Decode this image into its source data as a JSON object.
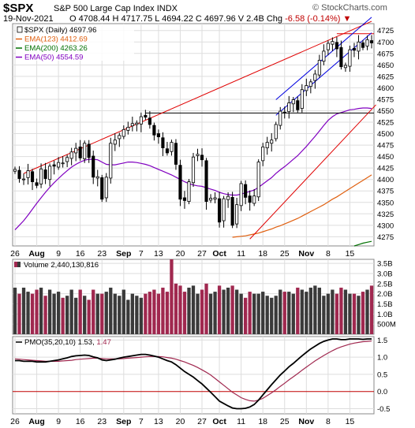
{
  "header": {
    "symbol": "$SPX",
    "name": "S&P 500 Large Cap Index",
    "exchange": "INDX",
    "source": "© StockCharts.com",
    "date": "19-Nov-2021",
    "open_label": "O",
    "open": "4708.44",
    "high_label": "H",
    "high": "4717.75",
    "low_label": "L",
    "low": "4694.22",
    "close_label": "C",
    "close": "4697.96",
    "volume_label": "V",
    "volume": "2.4B",
    "chg_label": "Chg",
    "chg": "-6.58 (-0.14%)",
    "chg_marker": "▼"
  },
  "colors": {
    "up_candle_outline": "#000000",
    "down_candle": "#000000",
    "ema123": "#e06010",
    "ema200": "#007000",
    "ema50": "#8000c0",
    "trendline": "#e00000",
    "channel": "#0000e0",
    "horizontal": "#000000",
    "vol_up": "#3a3a3a",
    "vol_down": "#a0284f",
    "pmo": "#000000",
    "pmo_signal": "#a0284f",
    "zero_line": "#c00000",
    "grid": "#dddddd"
  },
  "chart_data": [
    {
      "type": "candlestick",
      "panel": "price",
      "title": "$SPX (Daily) 4697.96",
      "legend": [
        {
          "name": "$SPX (Daily)",
          "value": "4697.96",
          "color": "#000000"
        },
        {
          "name": "EMA(123)",
          "value": "4412.69",
          "color": "#e06010"
        },
        {
          "name": "EMA(200)",
          "value": "4263.26",
          "color": "#007000"
        },
        {
          "name": "EMA(50)",
          "value": "4554.59",
          "color": "#8000c0"
        }
      ],
      "ylim": [
        4255,
        4740
      ],
      "yticks": [
        4275,
        4300,
        4325,
        4350,
        4375,
        4400,
        4425,
        4450,
        4475,
        4500,
        4525,
        4550,
        4575,
        4600,
        4625,
        4650,
        4675,
        4700,
        4725
      ],
      "x_labels": [
        "26",
        "Aug",
        "9",
        "16",
        "23",
        "Sep",
        "7",
        "13",
        "20",
        "27",
        "Oct",
        "11",
        "18",
        "25",
        "Nov",
        "8",
        "15"
      ],
      "x_label_sessions": [
        0,
        5,
        10,
        15,
        20,
        25,
        29,
        33,
        38,
        43,
        47,
        52,
        57,
        62,
        67,
        72,
        77
      ],
      "grid": true,
      "sessions": 83,
      "close": [
        4422,
        4402,
        4401,
        4419,
        4395,
        4387,
        4423,
        4402,
        4429,
        4429,
        4437,
        4436,
        4448,
        4460,
        4468,
        4447,
        4479,
        4448,
        4405,
        4406,
        4357,
        4405,
        4479,
        4486,
        4496,
        4509,
        4514,
        4522,
        4523,
        4537,
        4536,
        4520,
        4497,
        4493,
        4469,
        4458,
        4481,
        4433,
        4357,
        4354,
        4395,
        4449,
        4455,
        4443,
        4352,
        4359,
        4360,
        4307,
        4358,
        4363,
        4300,
        4345,
        4391,
        4361,
        4350,
        4364,
        4438,
        4471,
        4481,
        4486,
        4520,
        4549,
        4545,
        4567,
        4574,
        4552,
        4596,
        4605,
        4613,
        4630,
        4660,
        4680,
        4697,
        4701,
        4685,
        4646,
        4649,
        4683,
        4682,
        4700,
        4688,
        4705,
        4698
      ],
      "annotations": [
        {
          "type": "hline",
          "value": 4545,
          "color": "#000000"
        },
        {
          "type": "trendline",
          "from": [
            2,
            4413
          ],
          "to": [
            82,
            4745
          ],
          "color": "#e00000"
        },
        {
          "type": "hline",
          "value": 4718,
          "from_session": 74,
          "color": "#e00000"
        },
        {
          "type": "trendline",
          "from": [
            54,
            4270
          ],
          "to": [
            83,
            4563
          ],
          "color": "#e00000"
        },
        {
          "type": "channel",
          "from": [
            60,
            4540
          ],
          "to": [
            82,
            4720
          ],
          "color": "#0000e0"
        }
      ],
      "ema50": [
        4290,
        4300,
        4310,
        4322,
        4335,
        4348,
        4360,
        4372,
        4383,
        4393,
        4402,
        4411,
        4419,
        4427,
        4433,
        4438,
        4442,
        4444,
        4444,
        4443,
        4438,
        4433,
        4432,
        4432,
        4434,
        4436,
        4438,
        4438,
        4437,
        4435,
        4433,
        4430,
        4426,
        4422,
        4418,
        4414,
        4410,
        4405,
        4400,
        4395,
        4391,
        4388,
        4386,
        4385,
        4382,
        4379,
        4376,
        4372,
        4369,
        4367,
        4366,
        4366,
        4368,
        4371,
        4374,
        4377,
        4383,
        4390,
        4397,
        4404,
        4413,
        4421,
        4428,
        4436,
        4444,
        4452,
        4462,
        4472,
        4483,
        4494,
        4506,
        4518,
        4529,
        4537,
        4543,
        4546,
        4549,
        4552,
        4553,
        4555,
        4556,
        4556,
        4555
      ],
      "ema123": [
        null,
        null,
        null,
        null,
        null,
        null,
        null,
        null,
        null,
        null,
        null,
        null,
        null,
        null,
        null,
        null,
        null,
        null,
        null,
        null,
        null,
        null,
        null,
        null,
        null,
        null,
        null,
        null,
        null,
        null,
        null,
        null,
        null,
        null,
        null,
        null,
        null,
        null,
        null,
        null,
        null,
        null,
        null,
        null,
        null,
        null,
        null,
        null,
        null,
        null,
        4274,
        4275,
        4276,
        4277,
        4279,
        4281,
        4283,
        4286,
        4289,
        4292,
        4296,
        4299,
        4303,
        4307,
        4311,
        4315,
        4320,
        4325,
        4330,
        4335,
        4340,
        4345,
        4351,
        4357,
        4362,
        4368,
        4374,
        4380,
        4386,
        4392,
        4398,
        4404,
        4410
      ],
      "ema200": [
        null,
        null,
        null,
        null,
        null,
        null,
        null,
        null,
        null,
        null,
        null,
        null,
        null,
        null,
        null,
        null,
        null,
        null,
        null,
        null,
        null,
        null,
        null,
        null,
        null,
        null,
        null,
        null,
        null,
        null,
        null,
        null,
        null,
        null,
        null,
        null,
        null,
        null,
        null,
        null,
        null,
        null,
        null,
        null,
        null,
        null,
        null,
        null,
        null,
        null,
        null,
        null,
        null,
        null,
        null,
        null,
        null,
        null,
        null,
        null,
        null,
        null,
        null,
        null,
        null,
        null,
        null,
        null,
        null,
        null,
        null,
        null,
        null,
        null,
        null,
        null,
        null,
        null,
        4255,
        4258,
        4261,
        4263,
        4265
      ]
    },
    {
      "type": "bar",
      "panel": "volume",
      "title": "Volume 2,440,130,816",
      "ylim": [
        0,
        3.7
      ],
      "unit": "B",
      "yticks": [
        0.5,
        1.0,
        1.5,
        2.0,
        2.5,
        3.0,
        3.5
      ],
      "ytick_labels": [
        "500M",
        "1.0B",
        "1.5B",
        "2.0B",
        "2.5B",
        "3.0B",
        "3.5B"
      ],
      "values": [
        2.3,
        2.0,
        2.3,
        2.1,
        2.0,
        2.2,
        2.3,
        1.9,
        2.2,
        2.0,
        2.1,
        1.8,
        1.9,
        2.2,
        1.8,
        2.2,
        1.9,
        1.7,
        2.2,
        2.0,
        2.0,
        2.1,
        2.3,
        2.0,
        1.9,
        2.2,
        1.7,
        2.0,
        1.9,
        1.8,
        2.0,
        2.1,
        2.2,
        2.0,
        2.3,
        2.1,
        3.7,
        2.5,
        2.4,
        2.1,
        2.3,
        2.4,
        2.0,
        2.2,
        2.5,
        2.0,
        2.1,
        2.4,
        2.2,
        2.3,
        2.4,
        2.2,
        2.0,
        1.8,
        2.1,
        2.0,
        2.0,
        2.1,
        1.9,
        1.8,
        1.9,
        2.2,
        2.1,
        2.1,
        2.0,
        2.3,
        2.2,
        2.1,
        2.3,
        2.4,
        2.3,
        1.9,
        2.0,
        2.2,
        2.0,
        2.3,
        2.2,
        2.0,
        2.0,
        1.9,
        2.1,
        2.2,
        2.4
      ],
      "up": [
        true,
        false,
        true,
        true,
        false,
        false,
        true,
        false,
        true,
        true,
        true,
        false,
        true,
        true,
        true,
        false,
        true,
        false,
        false,
        true,
        false,
        true,
        true,
        true,
        true,
        true,
        true,
        true,
        true,
        true,
        false,
        false,
        false,
        false,
        false,
        false,
        false,
        false,
        false,
        false,
        true,
        true,
        true,
        false,
        false,
        true,
        true,
        false,
        true,
        true,
        false,
        true,
        true,
        false,
        false,
        true,
        true,
        true,
        true,
        true,
        true,
        true,
        false,
        true,
        true,
        false,
        true,
        true,
        true,
        true,
        true,
        true,
        true,
        true,
        false,
        false,
        true,
        true,
        false,
        true,
        false,
        true,
        false
      ]
    },
    {
      "type": "line",
      "panel": "indicator",
      "title": "PMO(35,20,10) 1.53, 1.47",
      "legend": [
        {
          "name": "PMO(35,20,10)",
          "value": "1.53",
          "color": "#000000"
        },
        {
          "name": "",
          "value": "1.47",
          "color": "#a0284f"
        }
      ],
      "ylim": [
        -0.65,
        1.6
      ],
      "yticks": [
        -0.5,
        0.0,
        0.5,
        1.0,
        1.5
      ],
      "zero_line": 0.0,
      "series": [
        {
          "name": "PMO(35,20,10)",
          "values": [
            0.9,
            0.9,
            0.88,
            0.88,
            0.88,
            0.86,
            0.86,
            0.86,
            0.88,
            0.9,
            0.92,
            0.95,
            0.98,
            1.02,
            1.04,
            1.05,
            1.06,
            1.05,
            1.01,
            0.98,
            0.92,
            0.9,
            0.92,
            0.94,
            0.97,
            1.0,
            1.02,
            1.04,
            1.06,
            1.08,
            1.08,
            1.06,
            1.03,
            1.0,
            0.95,
            0.9,
            0.86,
            0.78,
            0.68,
            0.58,
            0.5,
            0.42,
            0.32,
            0.22,
            0.1,
            -0.02,
            -0.15,
            -0.28,
            -0.35,
            -0.42,
            -0.48,
            -0.5,
            -0.5,
            -0.49,
            -0.45,
            -0.38,
            -0.25,
            -0.1,
            0.05,
            0.2,
            0.34,
            0.48,
            0.6,
            0.72,
            0.82,
            0.93,
            1.04,
            1.14,
            1.24,
            1.32,
            1.4,
            1.46,
            1.5,
            1.53,
            1.53,
            1.51,
            1.51,
            1.53,
            1.53,
            1.53,
            1.52,
            1.53,
            1.53
          ]
        },
        {
          "name": "",
          "values": [
            0.95,
            0.94,
            0.93,
            0.92,
            0.91,
            0.9,
            0.89,
            0.88,
            0.88,
            0.88,
            0.88,
            0.89,
            0.9,
            0.91,
            0.93,
            0.94,
            0.95,
            0.96,
            0.97,
            0.97,
            0.96,
            0.95,
            0.95,
            0.95,
            0.95,
            0.96,
            0.97,
            0.98,
            0.99,
            1.0,
            1.01,
            1.02,
            1.02,
            1.02,
            1.01,
            0.99,
            0.97,
            0.94,
            0.9,
            0.86,
            0.81,
            0.76,
            0.7,
            0.63,
            0.56,
            0.48,
            0.38,
            0.28,
            0.18,
            0.08,
            -0.02,
            -0.1,
            -0.18,
            -0.23,
            -0.27,
            -0.28,
            -0.25,
            -0.2,
            -0.12,
            -0.04,
            0.05,
            0.15,
            0.24,
            0.34,
            0.43,
            0.52,
            0.62,
            0.71,
            0.8,
            0.89,
            0.97,
            1.05,
            1.12,
            1.19,
            1.25,
            1.3,
            1.34,
            1.38,
            1.41,
            1.43,
            1.45,
            1.46,
            1.47
          ]
        }
      ]
    }
  ]
}
